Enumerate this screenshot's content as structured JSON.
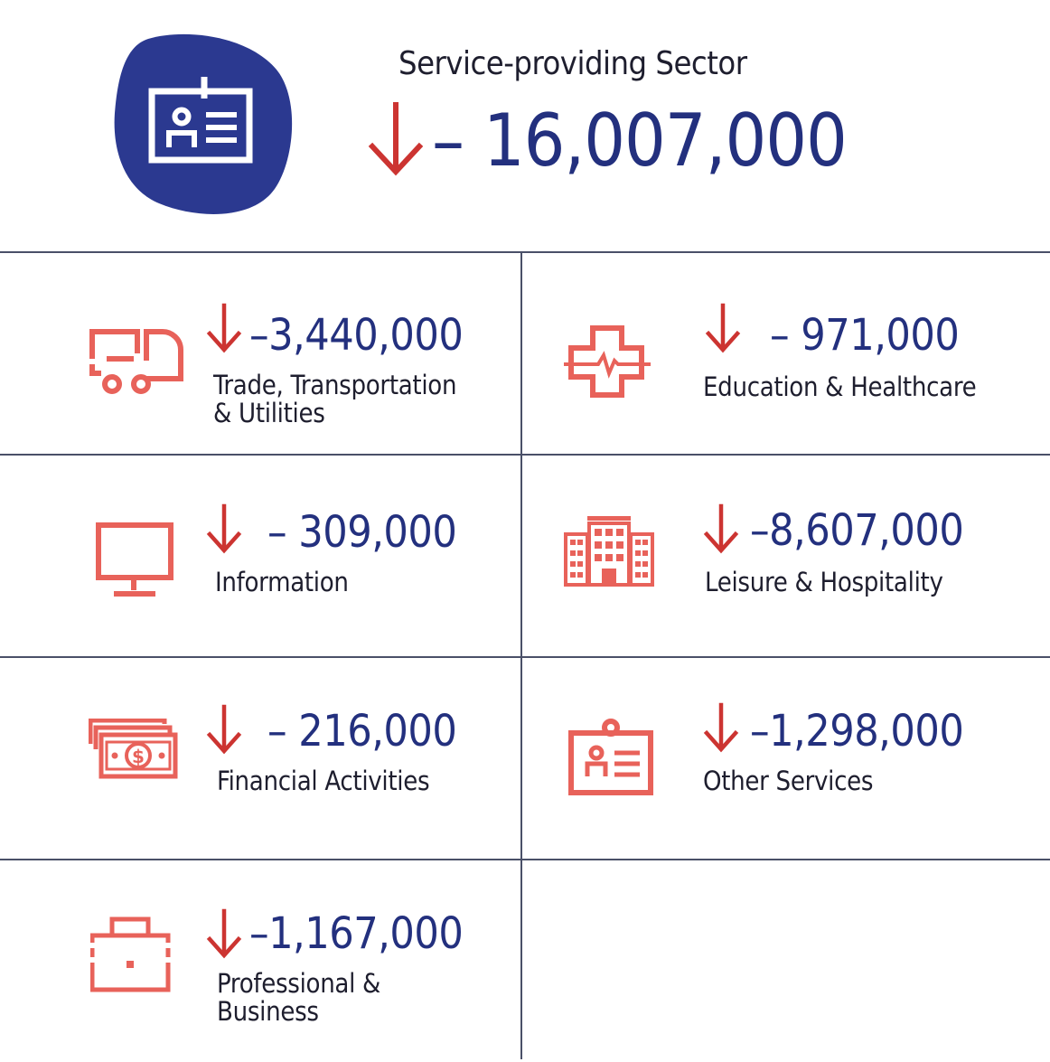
{
  "hero": {
    "title": "Service-providing Sector",
    "value": "– 16,007,000",
    "icon": "id-badge-icon",
    "trend": "down"
  },
  "colors": {
    "accent_red": "#cc3431",
    "value_blue": "#23307e",
    "icon_coral": "#e8625a",
    "blob_blue": "#2b3990",
    "divider": "#4a5068"
  },
  "sectors": [
    {
      "value": "–3,440,000",
      "label_line1": "Trade, Transportation",
      "label_line2": "& Utilities",
      "icon": "delivery-truck-icon",
      "trend": "down"
    },
    {
      "value": "– 971,000",
      "label_line1": "Education & Healthcare",
      "label_line2": "",
      "icon": "medical-cross-icon",
      "trend": "down"
    },
    {
      "value": "– 309,000",
      "label_line1": "Information",
      "label_line2": "",
      "icon": "monitor-icon",
      "trend": "down"
    },
    {
      "value": "–8,607,000",
      "label_line1": "Leisure & Hospitality",
      "label_line2": "",
      "icon": "hotel-building-icon",
      "trend": "down"
    },
    {
      "value": "– 216,000",
      "label_line1": "Financial Activities",
      "label_line2": "",
      "icon": "money-bills-icon",
      "trend": "down"
    },
    {
      "value": "–1,298,000",
      "label_line1": "Other Services",
      "label_line2": "",
      "icon": "id-badge-icon",
      "trend": "down"
    },
    {
      "value": "–1,167,000",
      "label_line1": "Professional &",
      "label_line2": "Business",
      "icon": "briefcase-icon",
      "trend": "down"
    }
  ]
}
